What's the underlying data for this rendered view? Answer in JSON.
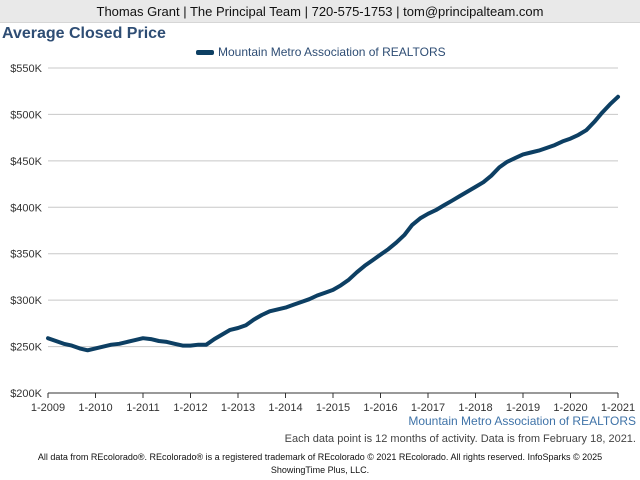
{
  "header": {
    "contact": "Thomas Grant | The Principal Team | 720-575-1753 | tom@principalteam.com"
  },
  "chart_data": {
    "type": "line",
    "title": "Average Closed Price",
    "legend_position": "top",
    "grid": "horizontal",
    "xlabel": "",
    "ylabel": "",
    "ylim": [
      200000,
      550000
    ],
    "y_ticks": [
      200000,
      250000,
      300000,
      350000,
      400000,
      450000,
      500000,
      550000
    ],
    "y_tick_labels": [
      "$200K",
      "$250K",
      "$300K",
      "$350K",
      "$400K",
      "$450K",
      "$500K",
      "$550K"
    ],
    "x_tick_labels": [
      "1-2009",
      "1-2010",
      "1-2011",
      "1-2012",
      "1-2013",
      "1-2014",
      "1-2015",
      "1-2016",
      "1-2017",
      "1-2018",
      "1-2019",
      "1-2020",
      "1-2021"
    ],
    "x_range": [
      "2009-01",
      "2021-01"
    ],
    "series": [
      {
        "name": "Mountain Metro Association of REALTORS",
        "color": "#0d3f63",
        "x": [
          "2009-01",
          "2009-03",
          "2009-05",
          "2009-07",
          "2009-09",
          "2009-11",
          "2010-01",
          "2010-03",
          "2010-05",
          "2010-07",
          "2010-09",
          "2010-11",
          "2011-01",
          "2011-03",
          "2011-05",
          "2011-07",
          "2011-09",
          "2011-11",
          "2012-01",
          "2012-03",
          "2012-05",
          "2012-07",
          "2012-09",
          "2012-11",
          "2013-01",
          "2013-03",
          "2013-05",
          "2013-07",
          "2013-09",
          "2013-11",
          "2014-01",
          "2014-03",
          "2014-05",
          "2014-07",
          "2014-09",
          "2014-11",
          "2015-01",
          "2015-03",
          "2015-05",
          "2015-07",
          "2015-09",
          "2015-11",
          "2016-01",
          "2016-03",
          "2016-05",
          "2016-07",
          "2016-09",
          "2016-11",
          "2017-01",
          "2017-03",
          "2017-05",
          "2017-07",
          "2017-09",
          "2017-11",
          "2018-01",
          "2018-03",
          "2018-05",
          "2018-07",
          "2018-09",
          "2018-11",
          "2019-01",
          "2019-03",
          "2019-05",
          "2019-07",
          "2019-09",
          "2019-11",
          "2020-01",
          "2020-03",
          "2020-05",
          "2020-07",
          "2020-09",
          "2020-11",
          "2021-01"
        ],
        "values": [
          259000,
          256000,
          253000,
          251000,
          248000,
          246000,
          248000,
          250000,
          252000,
          253000,
          255000,
          257000,
          259000,
          258000,
          256000,
          255000,
          253000,
          251000,
          251000,
          252000,
          252000,
          258000,
          263000,
          268000,
          270000,
          273000,
          279000,
          284000,
          288000,
          290000,
          292000,
          295000,
          298000,
          301000,
          305000,
          308000,
          311000,
          316000,
          322000,
          330000,
          337000,
          343000,
          349000,
          355000,
          362000,
          370000,
          381000,
          388000,
          393000,
          397000,
          402000,
          407000,
          412000,
          417000,
          422000,
          427000,
          434000,
          443000,
          449000,
          453000,
          457000,
          459000,
          461000,
          464000,
          467000,
          471000,
          474000,
          478000,
          483000,
          492000,
          502000,
          511000,
          519000
        ]
      }
    ]
  },
  "source_label": "Mountain Metro Association of REALTORS",
  "note": "Each data point is 12 months of activity. Data is from February 18, 2021.",
  "footer": {
    "line1": "All data from REcolorado®. REcolorado® is a registered trademark of REcolorado © 2021 REcolorado. All rights reserved. InfoSparks © 2025",
    "line2": "ShowingTime Plus, LLC."
  }
}
